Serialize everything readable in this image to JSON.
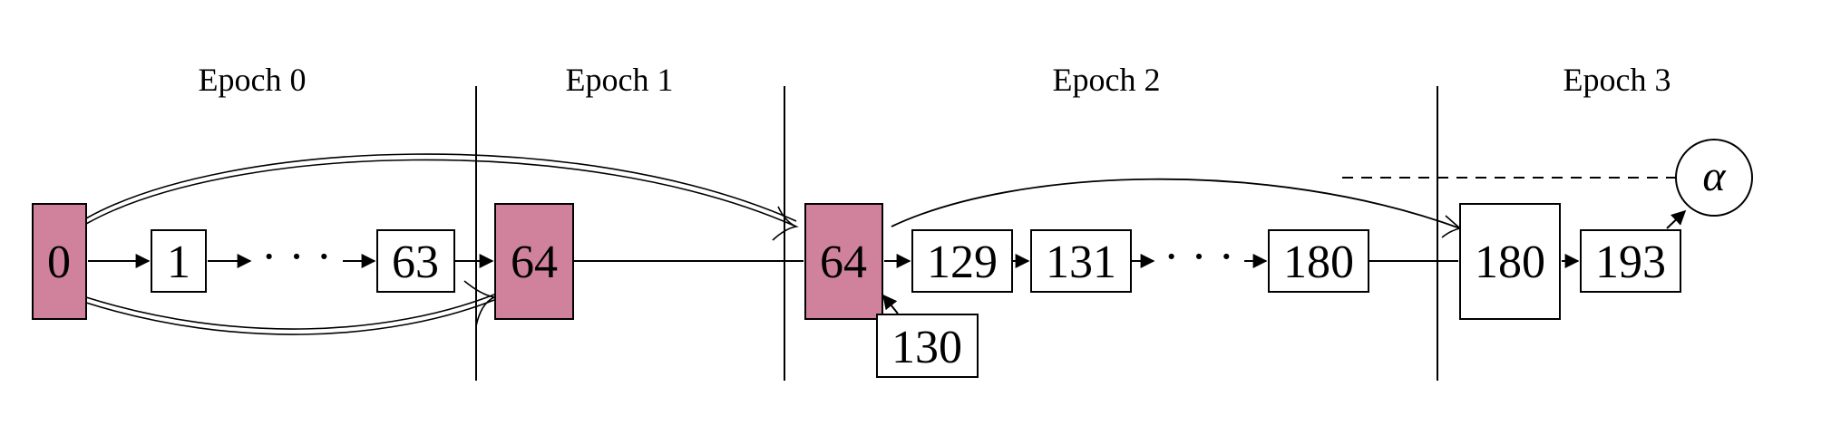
{
  "colors": {
    "highlight": "#D0829C",
    "plain": "#FFFFFF",
    "line": "#000000"
  },
  "epochs": [
    {
      "label": "Epoch 0"
    },
    {
      "label": "Epoch 1"
    },
    {
      "label": "Epoch 2"
    },
    {
      "label": "Epoch 3"
    }
  ],
  "nodes": {
    "n0": {
      "label": "0",
      "highlight": true
    },
    "n1": {
      "label": "1",
      "highlight": false
    },
    "dots1": {
      "label": "· · ·"
    },
    "n63": {
      "label": "63",
      "highlight": false
    },
    "n64a": {
      "label": "64",
      "highlight": true
    },
    "n64b": {
      "label": "64",
      "highlight": true
    },
    "n129": {
      "label": "129",
      "highlight": false
    },
    "n131": {
      "label": "131",
      "highlight": false
    },
    "dots2": {
      "label": "· · ·"
    },
    "n180a": {
      "label": "180",
      "highlight": false
    },
    "n130": {
      "label": "130",
      "highlight": false
    },
    "n180b": {
      "label": "180",
      "highlight": false
    },
    "n193": {
      "label": "193",
      "highlight": false
    }
  },
  "alpha": {
    "label": "α"
  }
}
